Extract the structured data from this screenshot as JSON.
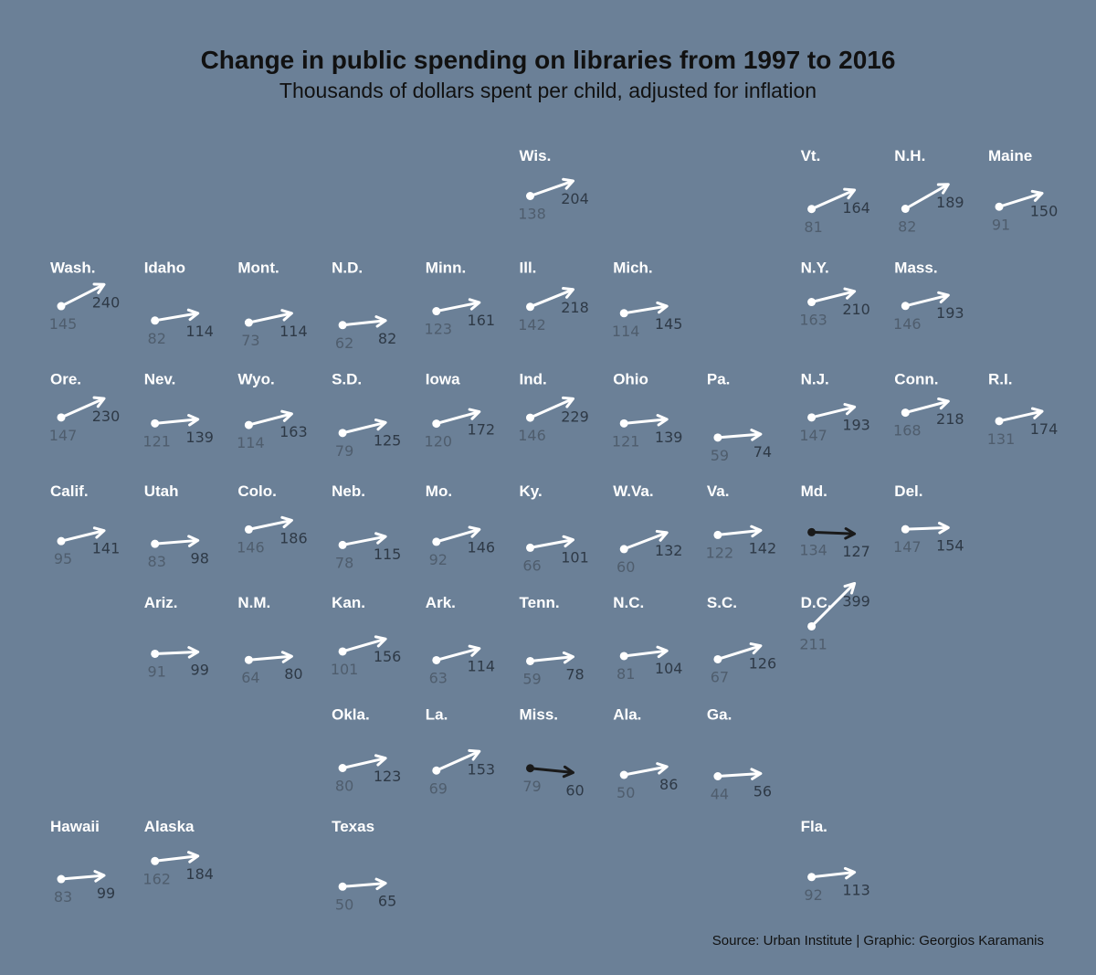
{
  "chart_data": {
    "type": "slope",
    "title": "Change in public spending on libraries from 1997 to 2016",
    "subtitle": "Thousands of dollars spent per child, adjusted for inflation",
    "x_years": [
      "1997",
      "2016"
    ],
    "colors": {
      "background": "#6b8097",
      "increase": "#ffffff",
      "decrease": "#1a1a1a",
      "label_1997": "#4f5d6d",
      "label_2016": "#2e3946",
      "state_name": "#ffffff"
    },
    "states": [
      {
        "name": "Wis.",
        "row": 0,
        "col": 5,
        "v1997": 138,
        "v2016": 204
      },
      {
        "name": "Vt.",
        "row": 0,
        "col": 8,
        "v1997": 81,
        "v2016": 164
      },
      {
        "name": "N.H.",
        "row": 0,
        "col": 9,
        "v1997": 82,
        "v2016": 189
      },
      {
        "name": "Maine",
        "row": 0,
        "col": 10,
        "v1997": 91,
        "v2016": 150
      },
      {
        "name": "Wash.",
        "row": 1,
        "col": 0,
        "v1997": 145,
        "v2016": 240
      },
      {
        "name": "Idaho",
        "row": 1,
        "col": 1,
        "v1997": 82,
        "v2016": 114
      },
      {
        "name": "Mont.",
        "row": 1,
        "col": 2,
        "v1997": 73,
        "v2016": 114
      },
      {
        "name": "N.D.",
        "row": 1,
        "col": 3,
        "v1997": 62,
        "v2016": 82
      },
      {
        "name": "Minn.",
        "row": 1,
        "col": 4,
        "v1997": 123,
        "v2016": 161
      },
      {
        "name": "Ill.",
        "row": 1,
        "col": 5,
        "v1997": 142,
        "v2016": 218
      },
      {
        "name": "Mich.",
        "row": 1,
        "col": 6,
        "v1997": 114,
        "v2016": 145
      },
      {
        "name": "N.Y.",
        "row": 1,
        "col": 8,
        "v1997": 163,
        "v2016": 210
      },
      {
        "name": "Mass.",
        "row": 1,
        "col": 9,
        "v1997": 146,
        "v2016": 193
      },
      {
        "name": "Ore.",
        "row": 2,
        "col": 0,
        "v1997": 147,
        "v2016": 230
      },
      {
        "name": "Nev.",
        "row": 2,
        "col": 1,
        "v1997": 121,
        "v2016": 139
      },
      {
        "name": "Wyo.",
        "row": 2,
        "col": 2,
        "v1997": 114,
        "v2016": 163
      },
      {
        "name": "S.D.",
        "row": 2,
        "col": 3,
        "v1997": 79,
        "v2016": 125
      },
      {
        "name": "Iowa",
        "row": 2,
        "col": 4,
        "v1997": 120,
        "v2016": 172
      },
      {
        "name": "Ind.",
        "row": 2,
        "col": 5,
        "v1997": 146,
        "v2016": 229
      },
      {
        "name": "Ohio",
        "row": 2,
        "col": 6,
        "v1997": 121,
        "v2016": 139
      },
      {
        "name": "Pa.",
        "row": 2,
        "col": 7,
        "v1997": 59,
        "v2016": 74
      },
      {
        "name": "N.J.",
        "row": 2,
        "col": 8,
        "v1997": 147,
        "v2016": 193
      },
      {
        "name": "Conn.",
        "row": 2,
        "col": 9,
        "v1997": 168,
        "v2016": 218
      },
      {
        "name": "R.I.",
        "row": 2,
        "col": 10,
        "v1997": 131,
        "v2016": 174
      },
      {
        "name": "Calif.",
        "row": 3,
        "col": 0,
        "v1997": 95,
        "v2016": 141
      },
      {
        "name": "Utah",
        "row": 3,
        "col": 1,
        "v1997": 83,
        "v2016": 98
      },
      {
        "name": "Colo.",
        "row": 3,
        "col": 2,
        "v1997": 146,
        "v2016": 186
      },
      {
        "name": "Neb.",
        "row": 3,
        "col": 3,
        "v1997": 78,
        "v2016": 115
      },
      {
        "name": "Mo.",
        "row": 3,
        "col": 4,
        "v1997": 92,
        "v2016": 146
      },
      {
        "name": "Ky.",
        "row": 3,
        "col": 5,
        "v1997": 66,
        "v2016": 101
      },
      {
        "name": "W.Va.",
        "row": 3,
        "col": 6,
        "v1997": 60,
        "v2016": 132
      },
      {
        "name": "Va.",
        "row": 3,
        "col": 7,
        "v1997": 122,
        "v2016": 142
      },
      {
        "name": "Md.",
        "row": 3,
        "col": 8,
        "v1997": 134,
        "v2016": 127
      },
      {
        "name": "Del.",
        "row": 3,
        "col": 9,
        "v1997": 147,
        "v2016": 154
      },
      {
        "name": "Ariz.",
        "row": 4,
        "col": 1,
        "v1997": 91,
        "v2016": 99
      },
      {
        "name": "N.M.",
        "row": 4,
        "col": 2,
        "v1997": 64,
        "v2016": 80
      },
      {
        "name": "Kan.",
        "row": 4,
        "col": 3,
        "v1997": 101,
        "v2016": 156
      },
      {
        "name": "Ark.",
        "row": 4,
        "col": 4,
        "v1997": 63,
        "v2016": 114
      },
      {
        "name": "Tenn.",
        "row": 4,
        "col": 5,
        "v1997": 59,
        "v2016": 78
      },
      {
        "name": "N.C.",
        "row": 4,
        "col": 6,
        "v1997": 81,
        "v2016": 104
      },
      {
        "name": "S.C.",
        "row": 4,
        "col": 7,
        "v1997": 67,
        "v2016": 126
      },
      {
        "name": "D.C.",
        "row": 4,
        "col": 8,
        "v1997": 211,
        "v2016": 399
      },
      {
        "name": "Okla.",
        "row": 5,
        "col": 3,
        "v1997": 80,
        "v2016": 123
      },
      {
        "name": "La.",
        "row": 5,
        "col": 4,
        "v1997": 69,
        "v2016": 153
      },
      {
        "name": "Miss.",
        "row": 5,
        "col": 5,
        "v1997": 79,
        "v2016": 60
      },
      {
        "name": "Ala.",
        "row": 5,
        "col": 6,
        "v1997": 50,
        "v2016": 86
      },
      {
        "name": "Ga.",
        "row": 5,
        "col": 7,
        "v1997": 44,
        "v2016": 56
      },
      {
        "name": "Hawaii",
        "row": 6,
        "col": 0,
        "v1997": 83,
        "v2016": 99
      },
      {
        "name": "Alaska",
        "row": 6,
        "col": 1,
        "v1997": 162,
        "v2016": 184
      },
      {
        "name": "Texas",
        "row": 6,
        "col": 3,
        "v1997": 50,
        "v2016": 65
      },
      {
        "name": "Fla.",
        "row": 6,
        "col": 8,
        "v1997": 92,
        "v2016": 113
      }
    ]
  },
  "source_note": "Source: Urban Institute | Graphic: Georgios Karamanis"
}
